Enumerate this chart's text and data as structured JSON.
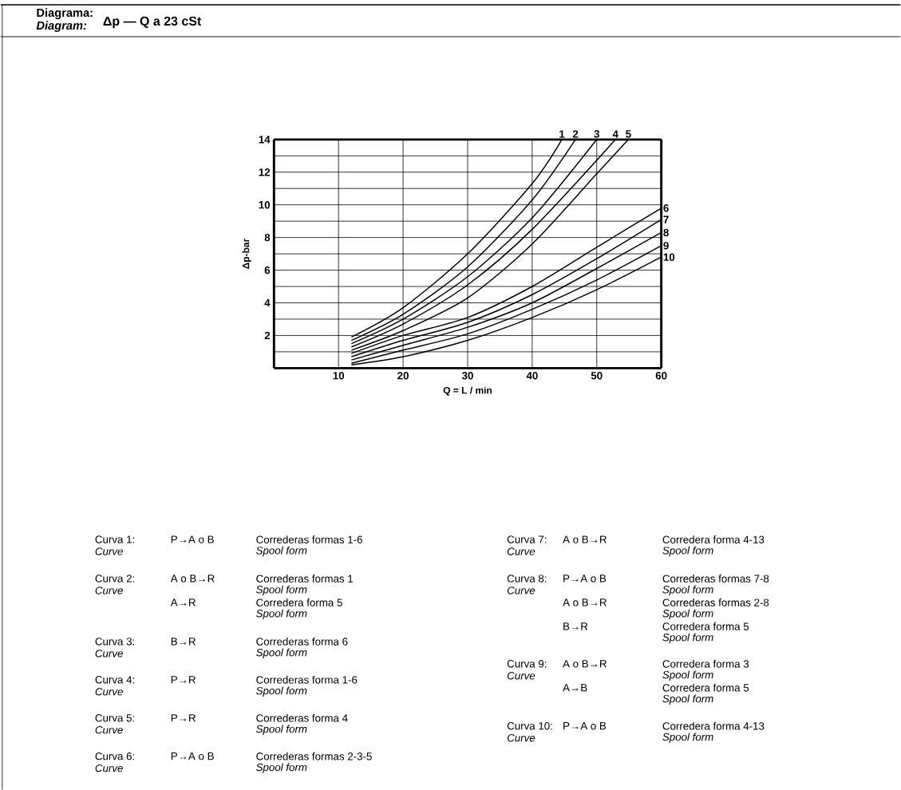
{
  "chart_data": {
    "type": "line",
    "title": "Diagrama:",
    "subtitle": "Diagram:",
    "xlabel": "Q = L / min",
    "ylabel": "Δp-bar",
    "xlim": [
      0,
      60
    ],
    "xticks": [
      10,
      20,
      30,
      40,
      50,
      60
    ],
    "ylim": [
      0,
      14
    ],
    "yticks": [
      {
        "value": 1,
        "label": null
      },
      2,
      {
        "value": 3,
        "label": null
      },
      4,
      {
        "value": 5,
        "label": null
      },
      6,
      {
        "value": 7,
        "label": null
      },
      8,
      {
        "value": 9,
        "label": null
      },
      10,
      {
        "value": 11,
        "label": null
      },
      12,
      {
        "value": 13,
        "label": null
      },
      14
    ],
    "grid": true,
    "line_style": "solid",
    "marker": "none",
    "series": [
      {
        "name": "1",
        "color": "#000000",
        "x": [
          12,
          20,
          30,
          40,
          44.6
        ],
        "values": [
          1.9,
          3.7,
          7.0,
          11.3,
          14
        ]
      },
      {
        "name": "2",
        "color": "#000000",
        "x": [
          12,
          20,
          30,
          40,
          46.7
        ],
        "values": [
          1.7,
          3.3,
          6.2,
          10.3,
          14
        ]
      },
      {
        "name": "3",
        "color": "#000000",
        "x": [
          12,
          20,
          30,
          40,
          50
        ],
        "values": [
          1.5,
          3.0,
          5.6,
          9.2,
          14
        ]
      },
      {
        "name": "4",
        "color": "#000000",
        "x": [
          12,
          20,
          30,
          40,
          52.9
        ],
        "values": [
          1.3,
          2.7,
          5.1,
          8.5,
          14
        ]
      },
      {
        "name": "5",
        "color": "#000000",
        "x": [
          12,
          20,
          30,
          40,
          50,
          54.9
        ],
        "values": [
          1.1,
          2.3,
          4.3,
          7.6,
          11.9,
          14
        ]
      },
      {
        "name": "6",
        "color": "#000000",
        "x": [
          12,
          20,
          30,
          40,
          50,
          60
        ],
        "values": [
          0.9,
          2.0,
          3.1,
          5.0,
          7.4,
          9.8
        ]
      },
      {
        "name": "7",
        "color": "#000000",
        "x": [
          12,
          20,
          30,
          40,
          50,
          60
        ],
        "values": [
          0.7,
          1.7,
          2.8,
          4.5,
          6.7,
          9.1
        ]
      },
      {
        "name": "8",
        "color": "#000000",
        "x": [
          12,
          20,
          30,
          40,
          50,
          60
        ],
        "values": [
          0.5,
          1.4,
          2.5,
          4.0,
          6.1,
          8.3
        ]
      },
      {
        "name": "9",
        "color": "#000000",
        "x": [
          12,
          20,
          30,
          40,
          50,
          60
        ],
        "values": [
          0.3,
          1.1,
          2.1,
          3.6,
          5.4,
          7.5
        ]
      },
      {
        "name": "10",
        "color": "#000000",
        "x": [
          12,
          20,
          30,
          40,
          50,
          60
        ],
        "values": [
          0.2,
          0.7,
          1.7,
          3.1,
          4.8,
          6.8
        ]
      }
    ],
    "annotations": [
      "Δp — Q a 23 cSt",
      "Curva 1:",
      "Curve",
      "P→A o B",
      "Correderas formas 1-6",
      "Spool form",
      "Curva 2:",
      "Curve",
      "A o B→R",
      "Correderas formas 1",
      "Spool form",
      "A→R",
      "Corredera forma 5",
      "Spool form",
      "Curva 3:",
      "Curve",
      "B→R",
      "Correderas forma 6",
      "Spool form",
      "Curva 4:",
      "Curve",
      "P→R",
      "Correderas forma 1-6",
      "Spool form",
      "Curva 5:",
      "Curve",
      "P→R",
      "Correderas forma 4",
      "Spool form",
      "Curva 6:",
      "Curve",
      "P→A o B",
      "Correderas formas 2-3-5",
      "Spool form",
      "Curva 7:",
      "Curve",
      "A o B→R",
      "Corredera forma 4-13",
      "Spool form",
      "Curva 8:",
      "Curve",
      "P→A o B",
      "Correderas formas 7-8",
      "Spool form",
      "A o B→R",
      "Correderas formas 2-8",
      "Spool form",
      "B→R",
      "Corredera forma 5",
      "Spool form",
      "Curva 9:",
      "Curve",
      "A o B→R",
      "Corredera forma 3",
      "Spool form",
      "A→B",
      "Corredera forma 5",
      "Spool form",
      "Curva 10:",
      "Curve",
      "P→A o B",
      "Corredera forma 4-13",
      "Spool form"
    ]
  }
}
